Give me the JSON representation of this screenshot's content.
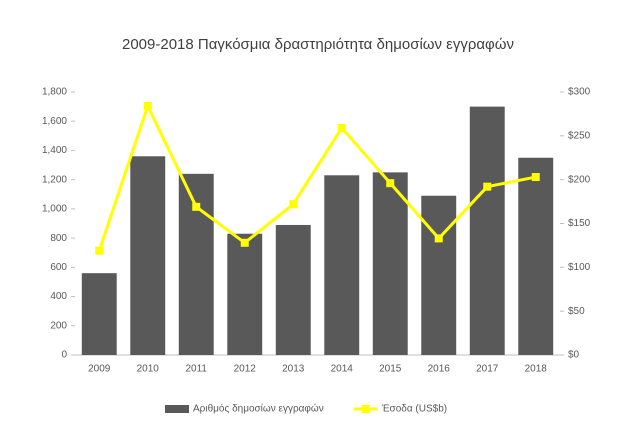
{
  "chart_data": {
    "type": "bar-line",
    "title": "2009-2018 Παγκόσμια δραστηριότητα δημοσίων εγγραφών",
    "categories": [
      "2009",
      "2010",
      "2011",
      "2012",
      "2013",
      "2014",
      "2015",
      "2016",
      "2017",
      "2018"
    ],
    "series": [
      {
        "name": "Αριθμός δημοσίων εγγραφών",
        "type": "bar",
        "color": "#595959",
        "values": [
          560,
          1360,
          1240,
          830,
          890,
          1230,
          1250,
          1090,
          1700,
          1350
        ]
      },
      {
        "name": "Έσοδα (US$b)",
        "type": "line",
        "axis": "y2",
        "color": "#ffff00",
        "values": [
          119,
          284,
          169,
          128,
          172,
          259,
          196,
          133,
          192,
          203
        ]
      }
    ],
    "ylim": [
      0,
      1800
    ],
    "yticks": [
      0,
      200,
      400,
      600,
      800,
      {
        "value": 1000,
        "label": "1,000"
      },
      {
        "value": 1200,
        "label": "1,200"
      },
      {
        "value": 1400,
        "label": "1,400"
      },
      {
        "value": 1600,
        "label": "1,600"
      },
      {
        "value": 1800,
        "label": "1,800"
      }
    ],
    "y2lim": [
      0,
      300
    ],
    "y2ticks": [
      {
        "value": 0,
        "label": "$0"
      },
      {
        "value": 50,
        "label": "$50"
      },
      {
        "value": 100,
        "label": "$100"
      },
      {
        "value": 150,
        "label": "$150"
      },
      {
        "value": 200,
        "label": "$200"
      },
      {
        "value": 250,
        "label": "$250"
      },
      {
        "value": 300,
        "label": "$300"
      }
    ],
    "legend": "bottom"
  }
}
